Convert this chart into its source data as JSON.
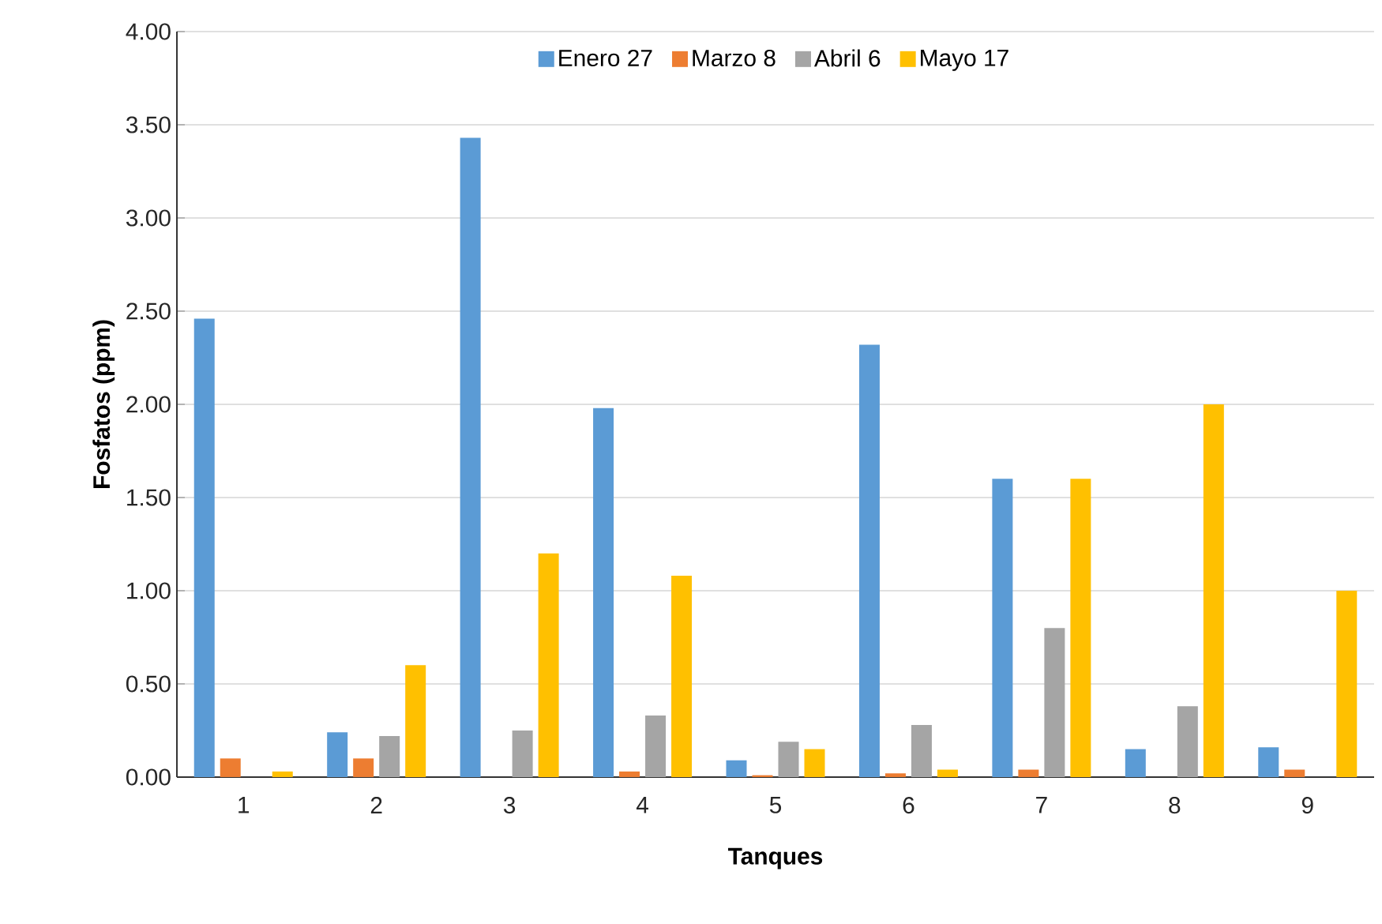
{
  "chart_data": {
    "type": "bar",
    "xlabel": "Tanques",
    "ylabel": "Fosfatos (ppm)",
    "categories": [
      "1",
      "2",
      "3",
      "4",
      "5",
      "6",
      "7",
      "8",
      "9"
    ],
    "series": [
      {
        "name": "Enero 27",
        "color": "#5b9bd5",
        "values": [
          2.46,
          0.24,
          3.43,
          1.98,
          0.09,
          2.32,
          1.6,
          0.15,
          0.16
        ]
      },
      {
        "name": "Marzo 8",
        "color": "#ed7d31",
        "values": [
          0.1,
          0.1,
          0,
          0.03,
          0.01,
          0.02,
          0.04,
          0,
          0.04
        ]
      },
      {
        "name": "Abril 6",
        "color": "#a5a5a5",
        "values": [
          0,
          0.22,
          0.25,
          0.33,
          0.19,
          0.28,
          0.8,
          0.38,
          0
        ]
      },
      {
        "name": "Mayo 17",
        "color": "#ffc000",
        "values": [
          0.03,
          0.6,
          1.2,
          1.08,
          0.15,
          0.04,
          1.6,
          2.0,
          1.0
        ]
      }
    ],
    "ylim": [
      0,
      4
    ],
    "yticks": [
      {
        "value": 0,
        "label": "0.00"
      },
      {
        "value": 0.5,
        "label": "0.50"
      },
      {
        "value": 1,
        "label": "1.00"
      },
      {
        "value": 1.5,
        "label": "1.50"
      },
      {
        "value": 2,
        "label": "2.00"
      },
      {
        "value": 2.5,
        "label": "2.50"
      },
      {
        "value": 3,
        "label": "3.00"
      },
      {
        "value": 3.5,
        "label": "3.50"
      },
      {
        "value": 4,
        "label": "4.00"
      }
    ],
    "grid": "y",
    "legend": "top"
  }
}
